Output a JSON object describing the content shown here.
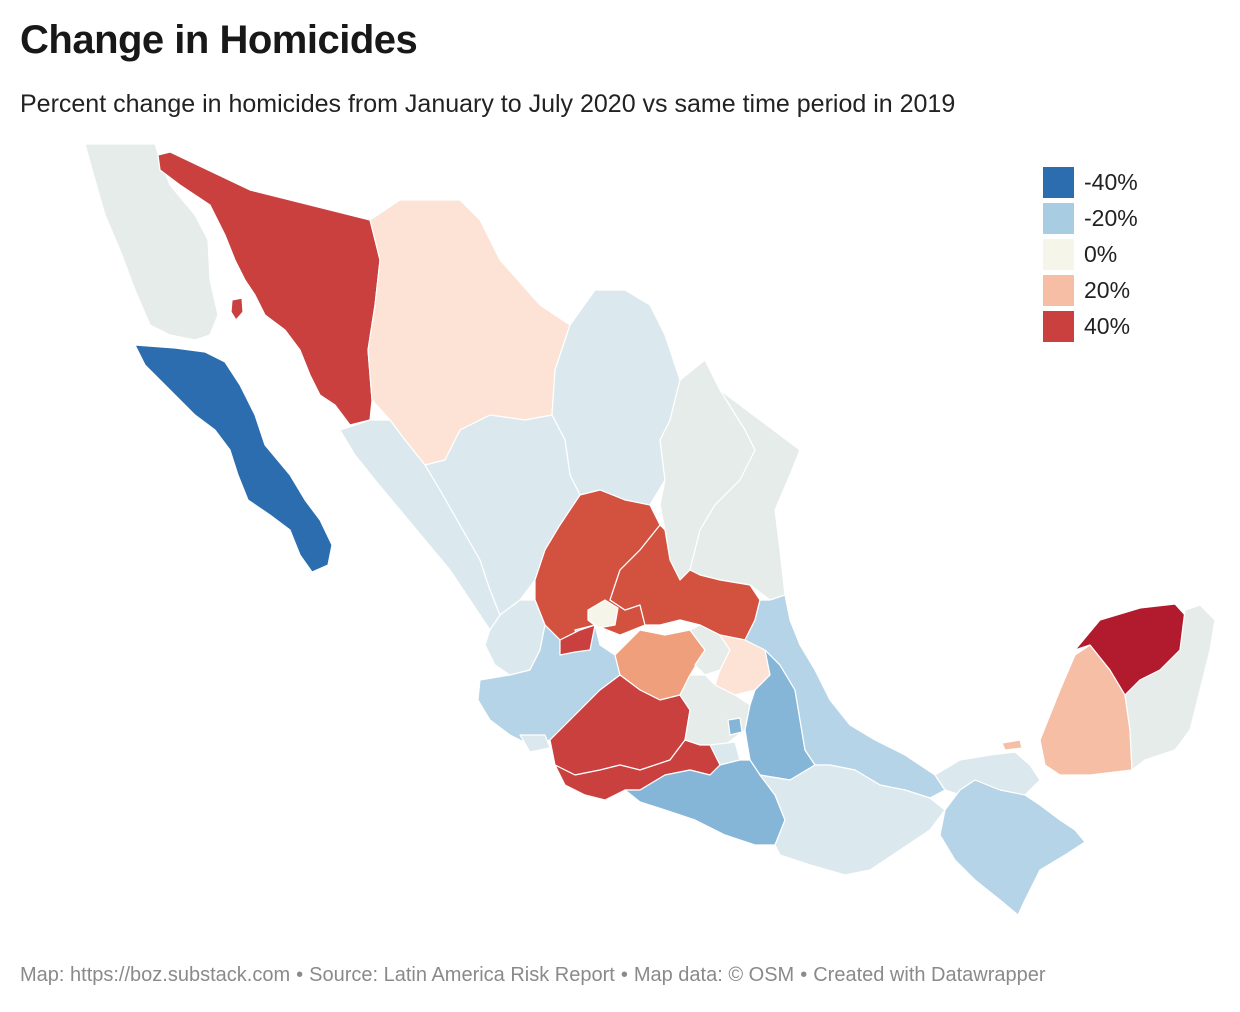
{
  "header": {
    "title": "Change in Homicides",
    "subtitle": "Percent change in homicides from January to July 2020 vs same time period in 2019"
  },
  "legend": {
    "items": [
      {
        "label": "-40%",
        "color": "#2c6db0"
      },
      {
        "label": "-20%",
        "color": "#a8cde3"
      },
      {
        "label": "0%",
        "color": "#f6f5ea"
      },
      {
        "label": "20%",
        "color": "#f5bea5"
      },
      {
        "label": "40%",
        "color": "#c9403e"
      }
    ]
  },
  "map_colors": {
    "no_data_gray": "#e6ece9",
    "light_blue": "#dbe9ef",
    "mid_blue": "#b6d4e7",
    "blue": "#85b6d8",
    "dark_blue": "#2c6db0",
    "pale_peach": "#fce3d5",
    "peach": "#f5bea5",
    "orange": "#ef9f7c",
    "red": "#c9403e",
    "red_orange": "#d3513f",
    "dark_red": "#b21b2d",
    "cream": "#f6f5ea"
  },
  "footer": {
    "map_credit": "Map: https://boz.substack.com",
    "source": "Source: Latin America Risk Report",
    "map_data": "Map data: © OSM",
    "created": "Created with Datawrapper",
    "separator": "•"
  }
}
